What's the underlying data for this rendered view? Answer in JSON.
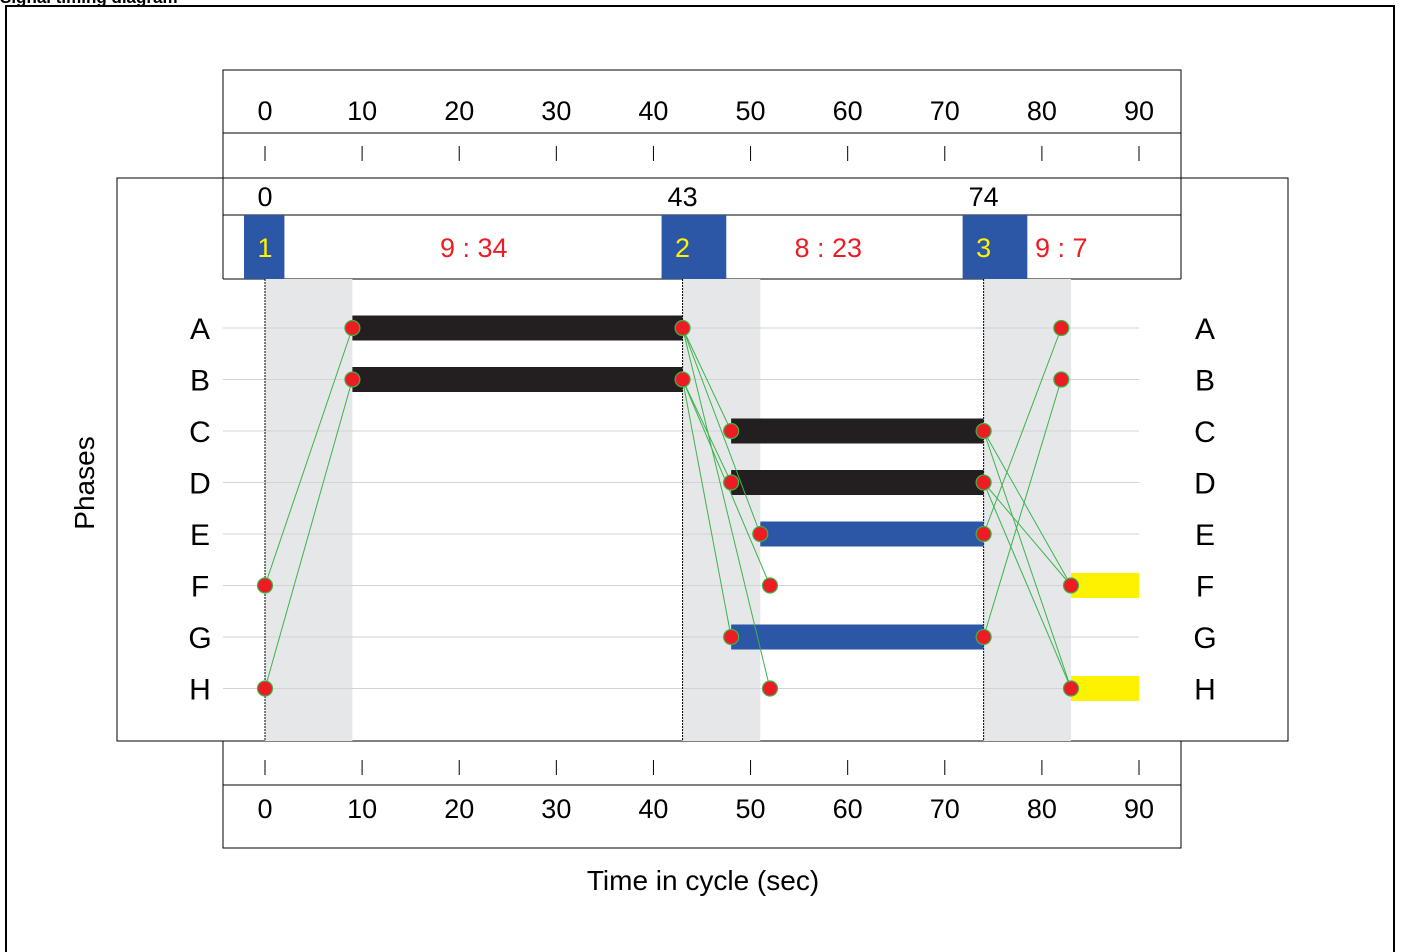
{
  "page": {
    "header_title": "Signal timing diagram"
  },
  "chart_data": {
    "type": "signal-timing-diagram",
    "xlabel": "Time in cycle (sec)",
    "ylabel": "Phases",
    "x_range": [
      0,
      90
    ],
    "x_ticks": [
      0,
      10,
      20,
      30,
      40,
      50,
      60,
      70,
      80,
      90
    ],
    "phases": [
      "A",
      "B",
      "C",
      "D",
      "E",
      "F",
      "G",
      "H"
    ],
    "stage_starts": [
      {
        "time": 0,
        "label": "0"
      },
      {
        "time": 43,
        "label": "43"
      },
      {
        "time": 74,
        "label": "74"
      }
    ],
    "stages": [
      {
        "number": "1",
        "start": 0,
        "end": 2
      },
      {
        "number": "2",
        "start": 43,
        "end": 47.5
      },
      {
        "number": "3",
        "start": 74,
        "end": 78.5
      }
    ],
    "stage_splits": [
      {
        "label": "9 : 34",
        "at": 21.5
      },
      {
        "label": "8 : 23",
        "at": 58
      },
      {
        "label": "9 : 7",
        "at": 82
      }
    ],
    "intergreen_periods": [
      {
        "start": 0,
        "end": 9
      },
      {
        "start": 43,
        "end": 51
      },
      {
        "start": 74,
        "end": 83
      }
    ],
    "green_bars": [
      {
        "phase": "A",
        "start": 9,
        "end": 43,
        "color": "#231f20"
      },
      {
        "phase": "B",
        "start": 9,
        "end": 43,
        "color": "#231f20"
      },
      {
        "phase": "C",
        "start": 48,
        "end": 74,
        "color": "#231f20"
      },
      {
        "phase": "D",
        "start": 48,
        "end": 74,
        "color": "#231f20"
      },
      {
        "phase": "E",
        "start": 51,
        "end": 74,
        "color": "#2c56a6"
      },
      {
        "phase": "G",
        "start": 48,
        "end": 74,
        "color": "#2c56a6"
      },
      {
        "phase": "F",
        "start": 83,
        "end": 90,
        "color": "#fff200"
      },
      {
        "phase": "H",
        "start": 83,
        "end": 90,
        "color": "#fff200"
      }
    ],
    "events": [
      {
        "phase": "F",
        "time": 0
      },
      {
        "phase": "H",
        "time": 0
      },
      {
        "phase": "A",
        "time": 9
      },
      {
        "phase": "B",
        "time": 9
      },
      {
        "phase": "A",
        "time": 43
      },
      {
        "phase": "B",
        "time": 43
      },
      {
        "phase": "C",
        "time": 48
      },
      {
        "phase": "D",
        "time": 48
      },
      {
        "phase": "E",
        "time": 51
      },
      {
        "phase": "F",
        "time": 52
      },
      {
        "phase": "G",
        "time": 48
      },
      {
        "phase": "H",
        "time": 52
      },
      {
        "phase": "C",
        "time": 74
      },
      {
        "phase": "D",
        "time": 74
      },
      {
        "phase": "E",
        "time": 74
      },
      {
        "phase": "G",
        "time": 74
      },
      {
        "phase": "A",
        "time": 82
      },
      {
        "phase": "B",
        "time": 82
      },
      {
        "phase": "F",
        "time": 83
      },
      {
        "phase": "H",
        "time": 83
      }
    ],
    "links": [
      {
        "from": [
          "F",
          0
        ],
        "to": [
          "A",
          9
        ]
      },
      {
        "from": [
          "H",
          0
        ],
        "to": [
          "B",
          9
        ]
      },
      {
        "from": [
          "A",
          43
        ],
        "to": [
          "C",
          48
        ]
      },
      {
        "from": [
          "A",
          43
        ],
        "to": [
          "E",
          51
        ]
      },
      {
        "from": [
          "A",
          43
        ],
        "to": [
          "H",
          52
        ]
      },
      {
        "from": [
          "B",
          43
        ],
        "to": [
          "D",
          48
        ]
      },
      {
        "from": [
          "B",
          43
        ],
        "to": [
          "F",
          52
        ]
      },
      {
        "from": [
          "B",
          43
        ],
        "to": [
          "G",
          48
        ]
      },
      {
        "from": [
          "C",
          74
        ],
        "to": [
          "F",
          83
        ]
      },
      {
        "from": [
          "C",
          74
        ],
        "to": [
          "H",
          83
        ]
      },
      {
        "from": [
          "D",
          74
        ],
        "to": [
          "F",
          83
        ]
      },
      {
        "from": [
          "D",
          74
        ],
        "to": [
          "H",
          83
        ]
      },
      {
        "from": [
          "E",
          74
        ],
        "to": [
          "A",
          82
        ]
      },
      {
        "from": [
          "G",
          74
        ],
        "to": [
          "B",
          82
        ]
      }
    ],
    "colors": {
      "stage_box": "#2c56a6",
      "stage_number": "#fff200",
      "split_text": "#ed1c24",
      "intergreen_shade": "#e6e7e8",
      "event_dot": "#ed1c24",
      "event_dot_outline": "#39b54a",
      "link_line": "#39b54a",
      "gridline": "#d1d3d4"
    }
  }
}
